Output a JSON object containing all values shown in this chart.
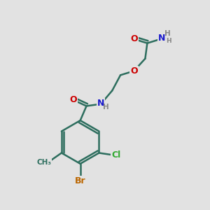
{
  "bg_color": "#e2e2e2",
  "bond_color": "#2d6e5e",
  "bond_width": 1.8,
  "atom_colors": {
    "O": "#cc0000",
    "N": "#1a1acc",
    "Br": "#bb6600",
    "Cl": "#33aa33",
    "C": "#2d6e5e",
    "H": "#888888"
  },
  "font_size": 9,
  "small_font_size": 7.5
}
